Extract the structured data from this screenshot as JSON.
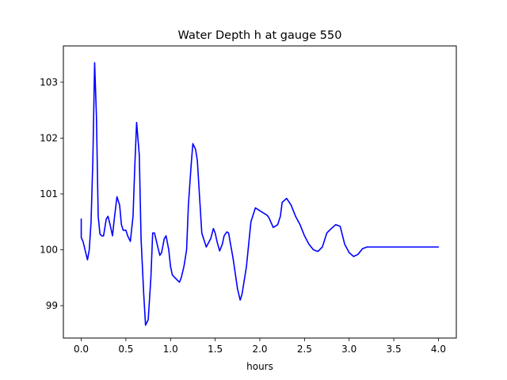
{
  "chart_data": {
    "type": "line",
    "title": "Water Depth h at gauge 550",
    "xlabel": "hours",
    "ylabel": "",
    "xlim": [
      -0.2,
      4.2
    ],
    "ylim": [
      98.42,
      103.65
    ],
    "xticks": [
      "0.0",
      "0.5",
      "1.0",
      "1.5",
      "2.0",
      "2.5",
      "3.0",
      "3.5",
      "4.0"
    ],
    "yticks": [
      "99",
      "100",
      "101",
      "102",
      "103"
    ],
    "grid": false,
    "series": [
      {
        "color": "#0000ff",
        "x": [
          0.0,
          0.0,
          0.02,
          0.05,
          0.07,
          0.09,
          0.11,
          0.13,
          0.15,
          0.17,
          0.19,
          0.21,
          0.23,
          0.25,
          0.28,
          0.3,
          0.33,
          0.35,
          0.37,
          0.4,
          0.43,
          0.45,
          0.47,
          0.5,
          0.52,
          0.55,
          0.58,
          0.6,
          0.62,
          0.65,
          0.67,
          0.7,
          0.72,
          0.75,
          0.78,
          0.8,
          0.82,
          0.85,
          0.88,
          0.9,
          0.93,
          0.95,
          0.98,
          1.0,
          1.02,
          1.05,
          1.08,
          1.1,
          1.12,
          1.15,
          1.18,
          1.2,
          1.23,
          1.25,
          1.28,
          1.3,
          1.35,
          1.4,
          1.45,
          1.48,
          1.5,
          1.52,
          1.55,
          1.58,
          1.6,
          1.63,
          1.65,
          1.7,
          1.75,
          1.78,
          1.8,
          1.85,
          1.9,
          1.95,
          2.0,
          2.05,
          2.08,
          2.1,
          2.15,
          2.2,
          2.23,
          2.25,
          2.3,
          2.35,
          2.4,
          2.45,
          2.5,
          2.55,
          2.6,
          2.65,
          2.7,
          2.75,
          2.8,
          2.85,
          2.9,
          2.95,
          3.0,
          3.05,
          3.1,
          3.15,
          3.2,
          3.25,
          3.3,
          3.35,
          3.4,
          3.45,
          3.5,
          3.55,
          3.6,
          3.65,
          3.7,
          3.75,
          3.8,
          3.85,
          3.9,
          3.95,
          4.0
        ],
        "values": [
          100.55,
          100.22,
          100.15,
          99.95,
          99.82,
          100.0,
          100.5,
          101.6,
          103.35,
          102.4,
          100.6,
          100.28,
          100.25,
          100.25,
          100.55,
          100.6,
          100.4,
          100.25,
          100.55,
          100.95,
          100.8,
          100.45,
          100.35,
          100.35,
          100.25,
          100.15,
          100.6,
          101.5,
          102.28,
          101.7,
          100.2,
          99.2,
          98.65,
          98.75,
          99.5,
          100.3,
          100.3,
          100.1,
          99.9,
          99.95,
          100.2,
          100.25,
          100.0,
          99.7,
          99.55,
          99.5,
          99.45,
          99.42,
          99.5,
          99.7,
          100.0,
          100.8,
          101.5,
          101.9,
          101.8,
          101.6,
          100.3,
          100.05,
          100.2,
          100.38,
          100.3,
          100.15,
          99.98,
          100.1,
          100.25,
          100.32,
          100.3,
          99.85,
          99.3,
          99.1,
          99.2,
          99.7,
          100.5,
          100.75,
          100.7,
          100.65,
          100.62,
          100.58,
          100.4,
          100.45,
          100.6,
          100.85,
          100.92,
          100.8,
          100.6,
          100.45,
          100.25,
          100.1,
          100.0,
          99.97,
          100.05,
          100.3,
          100.38,
          100.45,
          100.42,
          100.1,
          99.95,
          99.88,
          99.92,
          100.02,
          100.05,
          100.05,
          100.05,
          100.05,
          100.05,
          100.05,
          100.05,
          100.05,
          100.05,
          100.05,
          100.05,
          100.05,
          100.05,
          100.05,
          100.05,
          100.05,
          100.05
        ]
      }
    ]
  }
}
